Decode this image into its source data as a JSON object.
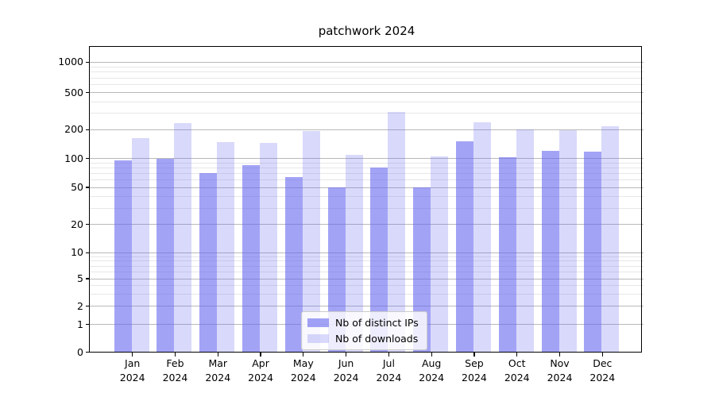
{
  "title": "patchwork 2024",
  "chart_data": {
    "type": "bar",
    "title": "patchwork 2024",
    "categories": [
      "Jan 2024",
      "Feb 2024",
      "Mar 2024",
      "Apr 2024",
      "May 2024",
      "Jun 2024",
      "Jul 2024",
      "Aug 2024",
      "Sep 2024",
      "Oct 2024",
      "Nov 2024",
      "Dec 2024"
    ],
    "series": [
      {
        "name": "Nb of distinct IPs",
        "color": "#6666f0",
        "opacity": 0.6,
        "values": [
          95,
          100,
          70,
          85,
          64,
          50,
          81,
          50,
          150,
          102,
          120,
          118
        ]
      },
      {
        "name": "Nb of downloads",
        "color": "#6666f0",
        "opacity": 0.25,
        "values": [
          164,
          235,
          147,
          145,
          195,
          110,
          312,
          105,
          240,
          203,
          196,
          216
        ]
      }
    ],
    "yscale": "symlog",
    "yticks": [
      0,
      1,
      2,
      5,
      10,
      20,
      50,
      100,
      200,
      500,
      1000
    ],
    "ylim": [
      0,
      1440
    ],
    "xlabel": "",
    "ylabel": "",
    "grid": true,
    "legend_position": "lower center"
  },
  "colors": {
    "background": "#ffffff",
    "axis": "#000000",
    "grid_major": "#b9b9b9",
    "grid_minor": "#e7e7e7",
    "bar_base": "#6666f0"
  }
}
